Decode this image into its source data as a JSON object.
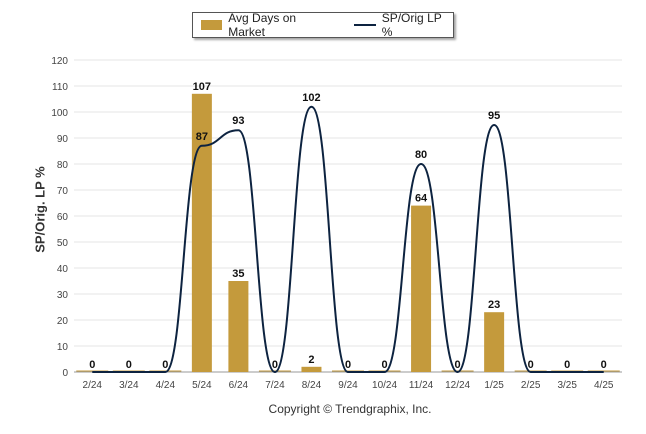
{
  "chart_data": {
    "type": "bar",
    "categories": [
      "2/24",
      "3/24",
      "4/24",
      "5/24",
      "6/24",
      "7/24",
      "8/24",
      "9/24",
      "10/24",
      "11/24",
      "12/24",
      "1/25",
      "2/25",
      "3/25",
      "4/25"
    ],
    "series": [
      {
        "name": "Avg Days on Market",
        "type": "bar",
        "color": "#c49a3c",
        "values": [
          0,
          0,
          0,
          107,
          35,
          0,
          2,
          0,
          0,
          64,
          0,
          23,
          0,
          0,
          0
        ],
        "labels": [
          "0",
          "0",
          "0",
          "107",
          "35",
          "0",
          "2",
          "0",
          "0",
          "64",
          "0",
          "23",
          "0",
          "0",
          "0"
        ]
      },
      {
        "name": "SP/Orig LP %",
        "type": "line",
        "color": "#0d2340",
        "values": [
          0,
          0,
          0,
          87,
          93,
          0,
          102,
          0,
          0,
          80,
          0,
          95,
          0,
          0,
          0
        ],
        "labels": [
          "",
          "",
          "",
          "87",
          "93",
          "",
          "102",
          "",
          "",
          "80",
          "",
          "95",
          "",
          "",
          ""
        ]
      }
    ],
    "ylabel": "SP/Orig. LP %",
    "xlabel": "",
    "ylim": [
      0,
      120
    ],
    "yticks": [
      0,
      10,
      20,
      30,
      40,
      50,
      60,
      70,
      80,
      90,
      100,
      110,
      120
    ],
    "grid": true,
    "legend_position": "top-center"
  },
  "footer": {
    "copyright": "Copyright © Trendgraphix, Inc."
  }
}
